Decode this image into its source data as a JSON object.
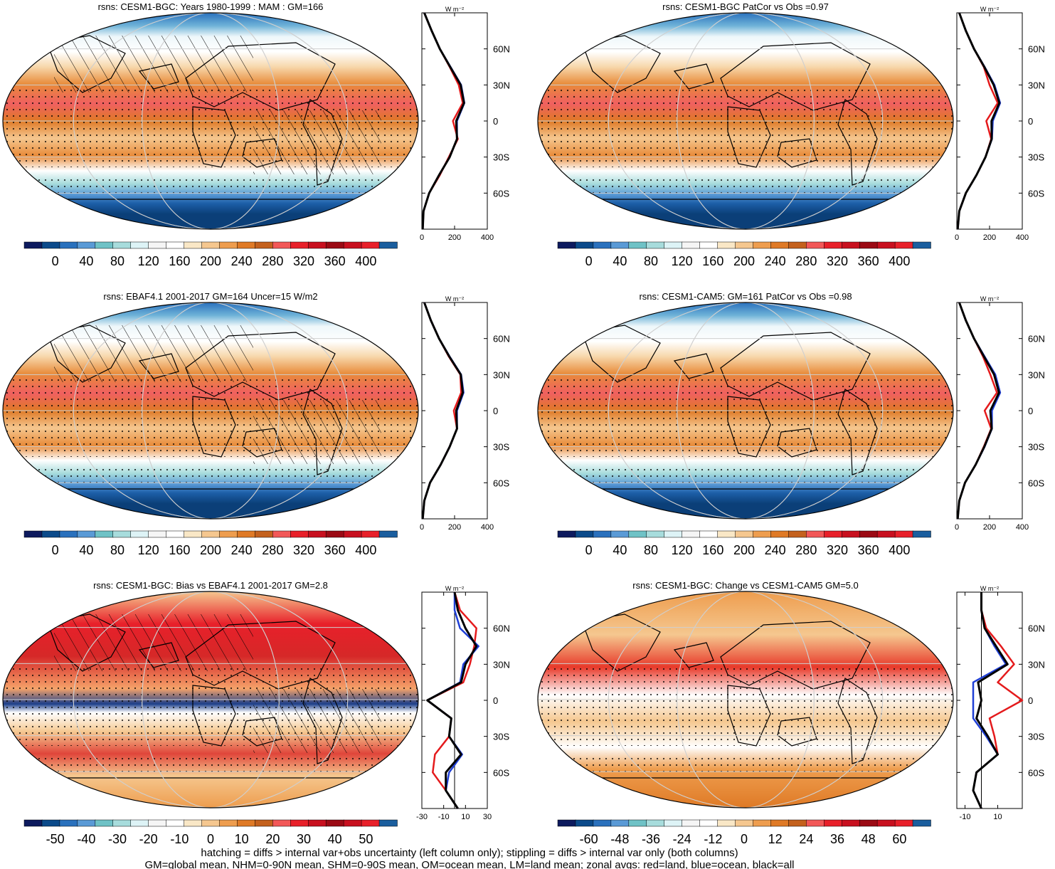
{
  "footer": {
    "line1": "hatching = diffs > internal var+obs uncertainty (left column only); stippling = diffs > internal var only (both columns)",
    "line2": "GM=global mean, NHM=0-90N mean, SHM=0-90S mean, OM=ocean mean, LM=land mean; zonal avgs: red=land, blue=ocean, black=all"
  },
  "units_label": "W m⁻²",
  "line_colors": {
    "land": "#e41a1c",
    "ocean": "#1f3fd6",
    "all": "#000000"
  },
  "lat_labels": [
    "60N",
    "30N",
    "0",
    "30S",
    "60S"
  ],
  "chart_data": [
    {
      "type": "heatmap",
      "title": "rsns: CESM1-BGC: Years 1980-1999 : MAM : GM=166",
      "hatching": true,
      "stippling": true,
      "colorbar": {
        "labels": [
          "0",
          "40",
          "80",
          "120",
          "160",
          "200",
          "240",
          "280",
          "320",
          "360",
          "400"
        ],
        "colors": [
          "#0d1a5e",
          "#0b4a8a",
          "#2a71bd",
          "#5a9ad6",
          "#6fc2c6",
          "#a7dcdc",
          "#ddf3f6",
          "#f5f5f5",
          "#ffffff",
          "#f9e7c6",
          "#f5c78f",
          "#ee9d4e",
          "#df7a26",
          "#c4611d",
          "#f25858",
          "#e8202a",
          "#c8101f",
          "#9b0a14",
          "#c8101f",
          "#e8202a",
          "#1a5e9e"
        ]
      },
      "zonal": {
        "xticks": [
          "0",
          "200",
          "400"
        ],
        "xlim": [
          0,
          400
        ],
        "lat": [
          -90,
          -75,
          -60,
          -45,
          -30,
          -15,
          0,
          15,
          30,
          45,
          60,
          75,
          90
        ],
        "land": [
          5,
          10,
          45,
          110,
          165,
          220,
          190,
          250,
          225,
          170,
          110,
          60,
          15
        ],
        "ocean": [
          5,
          10,
          45,
          105,
          170,
          215,
          215,
          260,
          240,
          175,
          110,
          60,
          15
        ],
        "all": [
          5,
          10,
          45,
          105,
          170,
          215,
          210,
          258,
          237,
          173,
          110,
          60,
          15
        ]
      }
    },
    {
      "type": "heatmap",
      "title": "rsns: CESM1-BGC PatCor vs Obs =0.97",
      "hatching": false,
      "stippling": true,
      "colorbar": {
        "labels": [
          "0",
          "40",
          "80",
          "120",
          "160",
          "200",
          "240",
          "280",
          "320",
          "360",
          "400"
        ],
        "colors": [
          "#0d1a5e",
          "#0b4a8a",
          "#2a71bd",
          "#5a9ad6",
          "#6fc2c6",
          "#a7dcdc",
          "#ddf3f6",
          "#f5f5f5",
          "#ffffff",
          "#f9e7c6",
          "#f5c78f",
          "#ee9d4e",
          "#df7a26",
          "#c4611d",
          "#f25858",
          "#e8202a",
          "#c8101f",
          "#9b0a14",
          "#c8101f",
          "#e8202a",
          "#1a5e9e"
        ]
      },
      "zonal": {
        "xticks": [
          "0",
          "200",
          "400"
        ],
        "xlim": [
          0,
          400
        ],
        "lat": [
          -90,
          -75,
          -60,
          -45,
          -30,
          -15,
          0,
          15,
          30,
          45,
          60,
          75,
          90
        ],
        "land": [
          5,
          15,
          55,
          120,
          175,
          210,
          180,
          250,
          200,
          165,
          105,
          55,
          15
        ],
        "ocean": [
          5,
          15,
          55,
          120,
          175,
          215,
          220,
          265,
          230,
          170,
          105,
          55,
          15
        ],
        "all": [
          5,
          15,
          55,
          120,
          175,
          213,
          212,
          260,
          225,
          168,
          105,
          55,
          15
        ]
      }
    },
    {
      "type": "heatmap",
      "title": "rsns: EBAF4.1 2001-2017 GM=164 Uncer=15 W/m2",
      "hatching": true,
      "stippling": true,
      "colorbar": {
        "labels": [
          "0",
          "40",
          "80",
          "120",
          "160",
          "200",
          "240",
          "280",
          "320",
          "360",
          "400"
        ],
        "colors": [
          "#0d1a5e",
          "#0b4a8a",
          "#2a71bd",
          "#5a9ad6",
          "#6fc2c6",
          "#a7dcdc",
          "#ddf3f6",
          "#f5f5f5",
          "#ffffff",
          "#f9e7c6",
          "#f5c78f",
          "#ee9d4e",
          "#df7a26",
          "#c4611d",
          "#f25858",
          "#e8202a",
          "#c8101f",
          "#9b0a14",
          "#c8101f",
          "#e8202a",
          "#1a5e9e"
        ]
      },
      "zonal": {
        "xticks": [
          "0",
          "200",
          "400"
        ],
        "xlim": [
          0,
          400
        ],
        "lat": [
          -90,
          -75,
          -60,
          -45,
          -30,
          -15,
          0,
          15,
          30,
          45,
          60,
          75,
          90
        ],
        "land": [
          5,
          15,
          50,
          115,
          170,
          215,
          195,
          240,
          235,
          165,
          105,
          55,
          15
        ],
        "ocean": [
          5,
          15,
          50,
          115,
          170,
          215,
          215,
          255,
          240,
          170,
          105,
          55,
          15
        ],
        "all": [
          5,
          15,
          50,
          115,
          170,
          215,
          210,
          250,
          238,
          168,
          105,
          55,
          15
        ]
      }
    },
    {
      "type": "heatmap",
      "title": "rsns: CESM1-CAM5: GM=161 PatCor vs Obs =0.98",
      "hatching": false,
      "stippling": true,
      "colorbar": {
        "labels": [
          "0",
          "40",
          "80",
          "120",
          "160",
          "200",
          "240",
          "280",
          "320",
          "360",
          "400"
        ],
        "colors": [
          "#0d1a5e",
          "#0b4a8a",
          "#2a71bd",
          "#5a9ad6",
          "#6fc2c6",
          "#a7dcdc",
          "#ddf3f6",
          "#f5f5f5",
          "#ffffff",
          "#f9e7c6",
          "#f5c78f",
          "#ee9d4e",
          "#df7a26",
          "#c4611d",
          "#f25858",
          "#e8202a",
          "#c8101f",
          "#9b0a14",
          "#c8101f",
          "#e8202a",
          "#1a5e9e"
        ]
      },
      "zonal": {
        "xticks": [
          "0",
          "200",
          "400"
        ],
        "xlim": [
          0,
          400
        ],
        "lat": [
          -90,
          -75,
          -60,
          -45,
          -30,
          -15,
          0,
          15,
          30,
          45,
          60,
          75,
          90
        ],
        "land": [
          5,
          15,
          50,
          115,
          165,
          210,
          170,
          245,
          205,
          160,
          105,
          55,
          15
        ],
        "ocean": [
          5,
          15,
          50,
          115,
          170,
          215,
          215,
          265,
          235,
          170,
          105,
          55,
          15
        ],
        "all": [
          5,
          15,
          50,
          115,
          168,
          213,
          205,
          258,
          228,
          166,
          105,
          55,
          15
        ]
      }
    },
    {
      "type": "heatmap",
      "title": "rsns: CESM1-BGC: Bias vs EBAF4.1 2001-2017 GM=2.8",
      "hatching": true,
      "stippling": true,
      "colorbar": {
        "labels": [
          "-50",
          "-40",
          "-30",
          "-20",
          "-10",
          "0",
          "10",
          "20",
          "30",
          "40",
          "50"
        ],
        "colors": [
          "#0d1a5e",
          "#0b4a8a",
          "#2a71bd",
          "#5a9ad6",
          "#6fc2c6",
          "#a7dcdc",
          "#ddf3f6",
          "#f5f5f5",
          "#ffffff",
          "#f9e7c6",
          "#f5c78f",
          "#ee9d4e",
          "#df7a26",
          "#c4611d",
          "#f25858",
          "#e8202a",
          "#c8101f",
          "#9b0a14",
          "#c8101f",
          "#e8202a",
          "#1a5e9e"
        ]
      },
      "zonal": {
        "xticks": [
          "-30",
          "-10",
          "10",
          "30"
        ],
        "xlim": [
          -30,
          30
        ],
        "lat": [
          -90,
          -75,
          -60,
          -45,
          -30,
          -15,
          0,
          15,
          30,
          45,
          60,
          75,
          90
        ],
        "land": [
          3,
          -8,
          -20,
          -18,
          -5,
          -3,
          -25,
          8,
          14,
          18,
          20,
          5,
          0
        ],
        "ocean": [
          3,
          -8,
          -5,
          7,
          -5,
          -3,
          -25,
          5,
          8,
          22,
          5,
          0,
          0
        ],
        "all": [
          3,
          -8,
          -8,
          6,
          -5,
          -3,
          -25,
          6,
          10,
          20,
          10,
          3,
          0
        ]
      }
    },
    {
      "type": "heatmap",
      "title": "rsns: CESM1-BGC: Change vs CESM1-CAM5 GM=5.0",
      "hatching": false,
      "stippling": true,
      "colorbar": {
        "labels": [
          "-60",
          "-48",
          "-36",
          "-24",
          "-12",
          "0",
          "12",
          "24",
          "36",
          "48",
          "60"
        ],
        "colors": [
          "#0d1a5e",
          "#0b4a8a",
          "#2a71bd",
          "#5a9ad6",
          "#6fc2c6",
          "#a7dcdc",
          "#ddf3f6",
          "#f5f5f5",
          "#ffffff",
          "#f9e7c6",
          "#f5c78f",
          "#ee9d4e",
          "#df7a26",
          "#c4611d",
          "#f25858",
          "#e8202a",
          "#c8101f",
          "#9b0a14",
          "#c8101f",
          "#e8202a",
          "#1a5e9e"
        ]
      },
      "zonal": {
        "xticks": [
          "-10",
          "10"
        ],
        "xlim": [
          -15,
          25
        ],
        "lat": [
          -90,
          -75,
          -60,
          -45,
          -30,
          -15,
          0,
          15,
          30,
          45,
          60,
          75,
          90
        ],
        "land": [
          0,
          -5,
          -3,
          10,
          8,
          5,
          25,
          10,
          20,
          12,
          3,
          0,
          0
        ],
        "ocean": [
          0,
          -5,
          -3,
          10,
          3,
          -5,
          -5,
          -5,
          15,
          8,
          2,
          0,
          0
        ],
        "all": [
          0,
          -5,
          -3,
          10,
          4,
          -3,
          0,
          -2,
          16,
          9,
          2,
          0,
          0
        ]
      }
    }
  ]
}
